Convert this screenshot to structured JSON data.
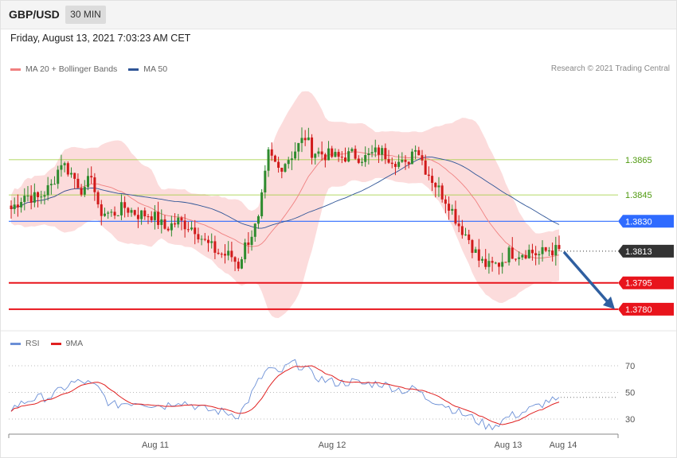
{
  "header": {
    "symbol": "GBP/USD",
    "timeframe": "30 MIN"
  },
  "datetime": "Friday, August 13, 2021 7:03:23 AM CET",
  "legend": {
    "ma20": {
      "label": "MA 20 + Bollinger Bands",
      "color": "#f08080"
    },
    "ma50": {
      "label": "MA 50",
      "color": "#2f5597"
    }
  },
  "credit": "Research © 2021 Trading Central",
  "rsi_legend": {
    "rsi": {
      "label": "RSI",
      "color": "#6b8fd6"
    },
    "ma9": {
      "label": "9MA",
      "color": "#e02020"
    }
  },
  "colors": {
    "up": "#2e8b2e",
    "down": "#d11a1a",
    "band": "#fcd6d6",
    "resistance": "#9acd32",
    "pivot": "#2f6bff",
    "support": "#e8141c",
    "arrow": "#2f5fa0",
    "current": "#333333"
  },
  "chart_data": [
    {
      "type": "candlestick",
      "symbol": "GBP/USD",
      "timeframe": "30 MIN",
      "x_tick_labels": [
        "Aug 11",
        "Aug 12",
        "Aug 13",
        "Aug 14"
      ],
      "price_levels": [
        {
          "value": 1.3865,
          "label": "1.3865",
          "role": "resistance"
        },
        {
          "value": 1.3845,
          "label": "1.3845",
          "role": "resistance"
        },
        {
          "value": 1.383,
          "label": "1.3830",
          "role": "pivot"
        },
        {
          "value": 1.3813,
          "label": "1.3813",
          "role": "current"
        },
        {
          "value": 1.3795,
          "label": "1.3795",
          "role": "support"
        },
        {
          "value": 1.378,
          "label": "1.3780",
          "role": "support"
        }
      ],
      "ylim": [
        1.377,
        1.394
      ],
      "series": [
        {
          "name": "MA 20 + Bollinger Bands"
        },
        {
          "name": "MA 50"
        }
      ],
      "close_path": [
        [
          0,
          1.3837
        ],
        [
          4,
          1.3845
        ],
        [
          8,
          1.3843
        ],
        [
          12,
          1.385
        ],
        [
          15,
          1.3864
        ],
        [
          18,
          1.3857
        ],
        [
          22,
          1.3846
        ],
        [
          24,
          1.3858
        ],
        [
          26,
          1.3836
        ],
        [
          30,
          1.3834
        ],
        [
          34,
          1.3838
        ],
        [
          38,
          1.3834
        ],
        [
          42,
          1.3834
        ],
        [
          46,
          1.3826
        ],
        [
          50,
          1.383
        ],
        [
          55,
          1.3826
        ],
        [
          58,
          1.3818
        ],
        [
          62,
          1.3812
        ],
        [
          66,
          1.381
        ],
        [
          68,
          1.3805
        ],
        [
          70,
          1.3816
        ],
        [
          74,
          1.383
        ],
        [
          77,
          1.3868
        ],
        [
          80,
          1.386
        ],
        [
          84,
          1.3868
        ],
        [
          88,
          1.3878
        ],
        [
          90,
          1.387
        ],
        [
          94,
          1.3868
        ],
        [
          98,
          1.3866
        ],
        [
          102,
          1.3868
        ],
        [
          106,
          1.3866
        ],
        [
          110,
          1.387
        ],
        [
          114,
          1.3866
        ],
        [
          118,
          1.3861
        ],
        [
          121,
          1.3874
        ],
        [
          124,
          1.386
        ],
        [
          128,
          1.3848
        ],
        [
          131,
          1.384
        ],
        [
          134,
          1.3828
        ],
        [
          137,
          1.382
        ],
        [
          140,
          1.3808
        ],
        [
          143,
          1.3804
        ],
        [
          146,
          1.3806
        ],
        [
          149,
          1.3812
        ],
        [
          152,
          1.3812
        ],
        [
          155,
          1.3813
        ],
        [
          158,
          1.3811
        ],
        [
          161,
          1.3814
        ],
        [
          164,
          1.3813
        ]
      ],
      "n_bars": 165
    },
    {
      "type": "line",
      "name": "RSI",
      "series": [
        {
          "name": "RSI"
        },
        {
          "name": "9MA"
        }
      ],
      "ylim": [
        15,
        85
      ],
      "y_tick_labels": [
        "70",
        "50",
        "30"
      ],
      "rsi_path": [
        [
          0,
          38
        ],
        [
          6,
          45
        ],
        [
          12,
          47
        ],
        [
          18,
          57
        ],
        [
          22,
          58
        ],
        [
          26,
          53
        ],
        [
          30,
          40
        ],
        [
          34,
          42
        ],
        [
          38,
          43
        ],
        [
          42,
          41
        ],
        [
          46,
          40
        ],
        [
          50,
          44
        ],
        [
          55,
          40
        ],
        [
          58,
          37
        ],
        [
          62,
          36
        ],
        [
          66,
          34
        ],
        [
          68,
          33
        ],
        [
          70,
          40
        ],
        [
          74,
          58
        ],
        [
          77,
          68
        ],
        [
          80,
          64
        ],
        [
          84,
          72
        ],
        [
          88,
          69
        ],
        [
          90,
          63
        ],
        [
          94,
          59
        ],
        [
          98,
          57
        ],
        [
          102,
          58
        ],
        [
          106,
          56
        ],
        [
          110,
          57
        ],
        [
          114,
          54
        ],
        [
          118,
          51
        ],
        [
          121,
          53
        ],
        [
          124,
          46
        ],
        [
          128,
          43
        ],
        [
          131,
          39
        ],
        [
          134,
          35
        ],
        [
          137,
          32
        ],
        [
          140,
          28
        ],
        [
          143,
          24
        ],
        [
          146,
          27
        ],
        [
          149,
          32
        ],
        [
          152,
          34
        ],
        [
          155,
          37
        ],
        [
          158,
          40
        ],
        [
          161,
          44
        ],
        [
          164,
          43
        ]
      ]
    }
  ]
}
